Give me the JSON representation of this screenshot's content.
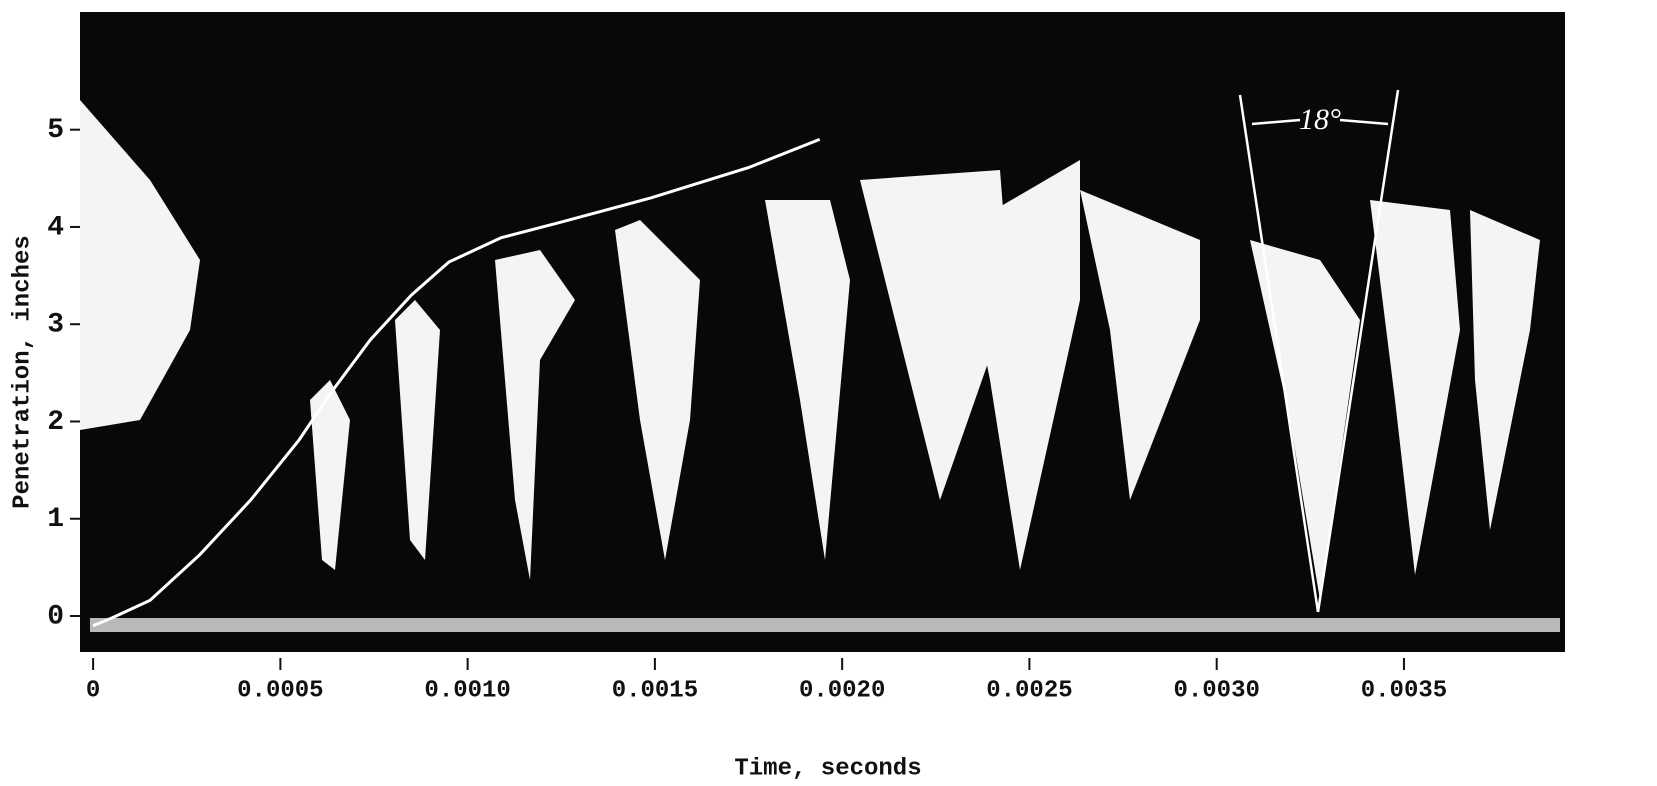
{
  "chart_data": {
    "type": "line",
    "xlabel": "Time, seconds",
    "ylabel": "Penetration, inches",
    "annotations": [
      "18°"
    ],
    "x": [
      0,
      5e-05,
      0.000152,
      0.000285,
      0.00042,
      0.00055,
      0.00063,
      0.00074,
      0.00085,
      0.00095,
      0.00109,
      0.00125,
      0.00149,
      0.00175,
      0.00194
    ],
    "values": [
      -0.1,
      -0.02,
      0.16,
      0.63,
      1.19,
      1.81,
      2.27,
      2.84,
      3.3,
      3.64,
      3.89,
      4.05,
      4.3,
      4.61,
      4.9
    ],
    "color": "#ffffff",
    "xlim": [
      -3.5e-05,
      0.00393
    ],
    "ylim": [
      -0.37,
      6.21
    ],
    "xticks": [
      0,
      0.0005,
      {
        "value": 0.001,
        "label": "0.0010"
      },
      0.0015,
      {
        "value": 0.002,
        "label": "0.0020"
      },
      0.0025,
      {
        "value": 0.003,
        "label": "0.0030"
      },
      0.0035
    ],
    "yticks": [
      0,
      1,
      2,
      3,
      4,
      5
    ]
  }
}
